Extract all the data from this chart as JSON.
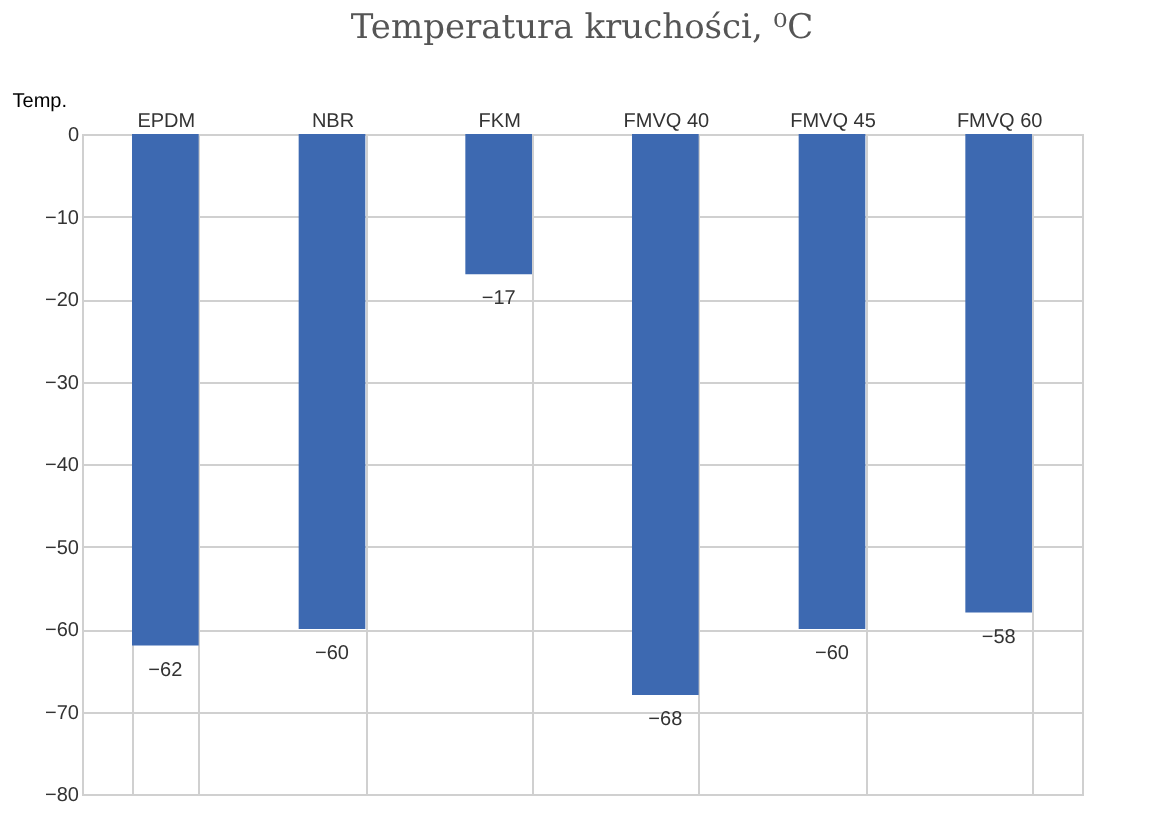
{
  "chart_data": {
    "type": "bar",
    "title": "Temperatura kruchości, ⁰C",
    "ylabel": "Temp.",
    "categories": [
      "EPDM",
      "NBR",
      "FKM",
      "FMVQ 40",
      "FMVQ 45",
      "FMVQ 60"
    ],
    "values": [
      -62,
      -60,
      -17,
      -68,
      -60,
      -58
    ],
    "color": "#3d69b1",
    "ylim": [
      -80,
      0
    ],
    "yticks": [
      0,
      -10,
      -20,
      -30,
      -40,
      -50,
      -60,
      -70,
      -80
    ],
    "grid": true,
    "data_labels": true
  }
}
